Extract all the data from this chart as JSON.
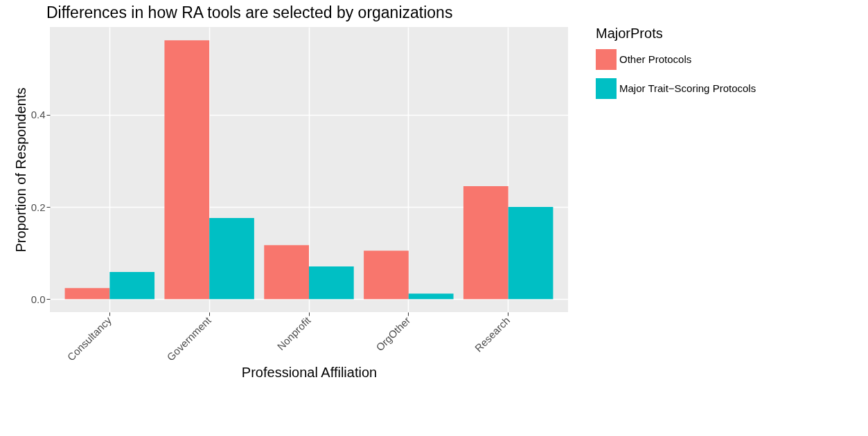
{
  "chart_data": {
    "type": "bar",
    "title": "Differences in how RA tools are selected by organizations",
    "xlabel": "Professional Affiliation",
    "ylabel": "Proportion of Respondents",
    "legend_title": "MajorProts",
    "categories": [
      "Consultancy",
      "Government",
      "Nonprofit",
      "OrgOther",
      "Research"
    ],
    "series": [
      {
        "name": "Other Protocols",
        "color": "#f8766d",
        "values": [
          0.024,
          0.561,
          0.117,
          0.105,
          0.245
        ]
      },
      {
        "name": "Major Trait−Scoring Protocols",
        "color": "#00bfc4",
        "values": [
          0.059,
          0.176,
          0.071,
          0.012,
          0.2
        ]
      }
    ],
    "ylim": [
      -0.028,
      0.59
    ],
    "yticks": [
      {
        "value": 0,
        "label": "0.0"
      },
      {
        "value": 0.2,
        "label": "0.2"
      },
      {
        "value": 0.4,
        "label": "0.4"
      }
    ],
    "grid": true,
    "legend": "right"
  }
}
